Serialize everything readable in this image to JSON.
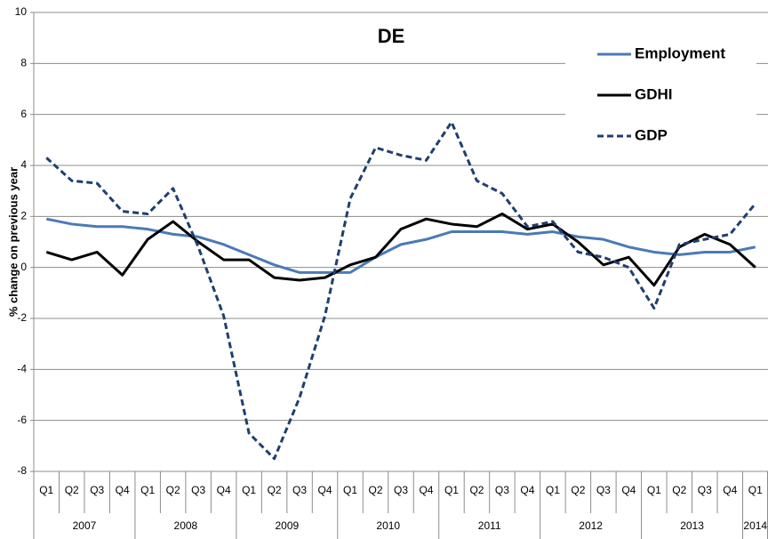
{
  "chart_data": {
    "type": "line",
    "title": "DE",
    "y_label": "% change on previous year",
    "year_groups": [
      {
        "year": "2007",
        "quarters": [
          "Q1",
          "Q2",
          "Q3",
          "Q4"
        ]
      },
      {
        "year": "2008",
        "quarters": [
          "Q1",
          "Q2",
          "Q3",
          "Q4"
        ]
      },
      {
        "year": "2009",
        "quarters": [
          "Q1",
          "Q2",
          "Q3",
          "Q4"
        ]
      },
      {
        "year": "2010",
        "quarters": [
          "Q1",
          "Q2",
          "Q3",
          "Q4"
        ]
      },
      {
        "year": "2011",
        "quarters": [
          "Q1",
          "Q2",
          "Q3",
          "Q4"
        ]
      },
      {
        "year": "2012",
        "quarters": [
          "Q1",
          "Q2",
          "Q3",
          "Q4"
        ]
      },
      {
        "year": "2013",
        "quarters": [
          "Q1",
          "Q2",
          "Q3",
          "Q4"
        ]
      },
      {
        "year": "2014",
        "quarters": [
          "Q1"
        ]
      }
    ],
    "ylim": [
      -8,
      10
    ],
    "yticks": [
      -8,
      -6,
      -4,
      -2,
      0,
      2,
      4,
      6,
      8,
      10
    ],
    "grid": true,
    "legend": "upper right",
    "series": [
      {
        "name": "Employment",
        "color": "#4a7ab5",
        "dash": false,
        "values": [
          1.9,
          1.7,
          1.6,
          1.6,
          1.5,
          1.3,
          1.2,
          0.9,
          0.5,
          0.1,
          -0.2,
          -0.2,
          -0.2,
          0.4,
          0.9,
          1.1,
          1.4,
          1.4,
          1.4,
          1.3,
          1.4,
          1.2,
          1.1,
          0.8,
          0.6,
          0.5,
          0.6,
          0.6,
          0.8
        ]
      },
      {
        "name": "GDHI",
        "color": "#000000",
        "dash": false,
        "values": [
          0.6,
          0.3,
          0.6,
          -0.3,
          1.1,
          1.8,
          1.0,
          0.3,
          0.3,
          -0.4,
          -0.5,
          -0.4,
          0.1,
          0.4,
          1.5,
          1.9,
          1.7,
          1.6,
          2.1,
          1.5,
          1.7,
          1.0,
          0.1,
          0.4,
          -0.7,
          0.8,
          1.3,
          0.9,
          0.0
        ]
      },
      {
        "name": "GDP",
        "color": "#1f3f6e",
        "dash": true,
        "values": [
          4.3,
          3.4,
          3.3,
          2.2,
          2.1,
          3.1,
          0.8,
          -1.9,
          -6.5,
          -7.5,
          -5.1,
          -1.9,
          2.7,
          4.7,
          4.4,
          4.2,
          5.7,
          3.4,
          2.9,
          1.6,
          1.8,
          0.6,
          0.4,
          0.0,
          -1.6,
          0.9,
          1.1,
          1.3,
          2.5
        ]
      }
    ]
  }
}
